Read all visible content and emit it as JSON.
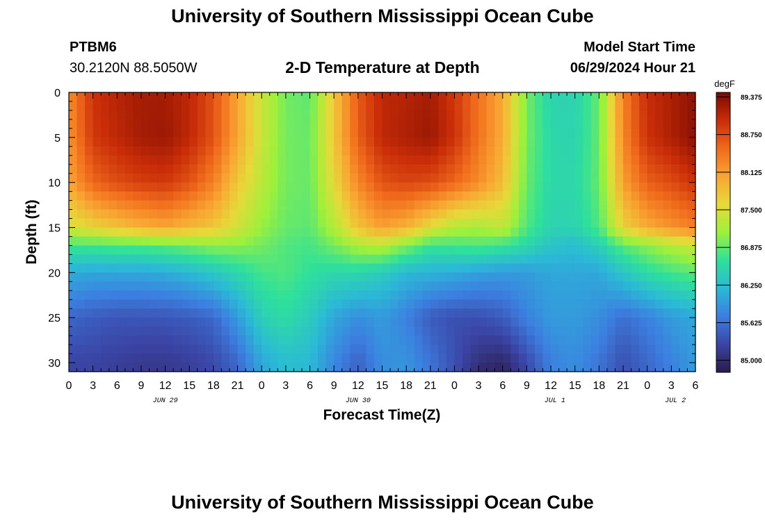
{
  "header": {
    "title_top": "University of Southern Mississippi Ocean Cube",
    "station": "PTBM6",
    "coords": "30.2120N  88.5050W",
    "plot_title": "2-D Temperature at Depth",
    "model_start_label": "Model Start Time",
    "model_start_value": "06/29/2024 Hour 21",
    "title_bottom": "University of Southern Mississippi Ocean Cube"
  },
  "colors": {
    "scale": [
      "#2b1a4a",
      "#3b45a6",
      "#3c7fe0",
      "#2bb9d6",
      "#2fe09b",
      "#9ef03b",
      "#e7d93a",
      "#f9a533",
      "#f06a1c",
      "#c92d08",
      "#7a0a02"
    ]
  },
  "chart_data": {
    "type": "heatmap",
    "title": "2-D Temperature at Depth",
    "xlabel": "Forecast Time(Z)",
    "ylabel": "Depth (ft)",
    "colorbar_unit": "degF",
    "xlim": [
      0,
      78
    ],
    "ylim": [
      0,
      31
    ],
    "x_ticks": [
      {
        "x": 0,
        "label": "0"
      },
      {
        "x": 3,
        "label": "3"
      },
      {
        "x": 6,
        "label": "6"
      },
      {
        "x": 9,
        "label": "9"
      },
      {
        "x": 12,
        "label": "12"
      },
      {
        "x": 15,
        "label": "15"
      },
      {
        "x": 18,
        "label": "18"
      },
      {
        "x": 21,
        "label": "21"
      },
      {
        "x": 24,
        "label": "0"
      },
      {
        "x": 27,
        "label": "3"
      },
      {
        "x": 30,
        "label": "6"
      },
      {
        "x": 33,
        "label": "9"
      },
      {
        "x": 36,
        "label": "12"
      },
      {
        "x": 39,
        "label": "15"
      },
      {
        "x": 42,
        "label": "18"
      },
      {
        "x": 45,
        "label": "21"
      },
      {
        "x": 48,
        "label": "0"
      },
      {
        "x": 51,
        "label": "3"
      },
      {
        "x": 54,
        "label": "6"
      },
      {
        "x": 57,
        "label": "9"
      },
      {
        "x": 60,
        "label": "12"
      },
      {
        "x": 63,
        "label": "15"
      },
      {
        "x": 66,
        "label": "18"
      },
      {
        "x": 69,
        "label": "21"
      },
      {
        "x": 72,
        "label": "0"
      },
      {
        "x": 75,
        "label": "3"
      },
      {
        "x": 78,
        "label": "6"
      }
    ],
    "date_labels": [
      {
        "x": 12,
        "label": "JUN 29"
      },
      {
        "x": 36,
        "label": "JUN 30"
      },
      {
        "x": 60.5,
        "label": "JUL 1"
      },
      {
        "x": 75.5,
        "label": "JUL 2"
      }
    ],
    "y_ticks": [
      0,
      5,
      10,
      15,
      20,
      25,
      30
    ],
    "colorbar": {
      "min": 84.8,
      "max": 89.45,
      "ticks": [
        "85.000",
        "85.625",
        "86.250",
        "86.875",
        "87.500",
        "88.125",
        "88.750",
        "89.375"
      ]
    },
    "depths": [
      0,
      5,
      10,
      15,
      17,
      20,
      25,
      30,
      31
    ],
    "times": [
      0,
      3,
      6,
      9,
      12,
      15,
      18,
      21,
      24,
      27,
      30,
      33,
      36,
      39,
      42,
      45,
      48,
      51,
      54,
      57,
      60,
      63,
      66,
      69,
      72,
      75,
      78
    ],
    "values": [
      [
        88.25,
        88.95,
        89.1,
        89.2,
        89.2,
        89.05,
        88.7,
        88.05,
        87.4,
        86.95,
        86.85,
        87.75,
        88.65,
        89.05,
        89.1,
        89.2,
        88.9,
        88.45,
        88.0,
        86.95,
        86.5,
        86.5,
        86.9,
        88.35,
        89.0,
        89.15,
        89.35
      ],
      [
        88.2,
        88.9,
        89.05,
        89.2,
        89.25,
        89.05,
        88.7,
        88.05,
        87.4,
        86.95,
        86.9,
        87.75,
        88.6,
        89.05,
        89.15,
        89.25,
        88.95,
        88.45,
        88.0,
        86.95,
        86.55,
        86.5,
        86.9,
        88.3,
        88.95,
        89.15,
        89.35
      ],
      [
        88.05,
        88.55,
        88.75,
        88.85,
        88.9,
        88.7,
        88.35,
        87.75,
        87.3,
        86.95,
        86.9,
        87.6,
        88.3,
        88.7,
        88.8,
        88.75,
        88.55,
        88.25,
        87.85,
        86.9,
        86.55,
        86.55,
        86.9,
        88.1,
        88.6,
        88.75,
        88.95
      ],
      [
        87.45,
        87.65,
        87.8,
        87.95,
        88.05,
        87.9,
        87.75,
        87.45,
        87.1,
        86.9,
        86.85,
        87.25,
        87.8,
        88.1,
        87.95,
        87.55,
        87.25,
        87.2,
        87.35,
        86.8,
        86.5,
        86.5,
        86.8,
        87.65,
        88.0,
        88.2,
        88.35
      ],
      [
        86.75,
        86.75,
        86.8,
        86.8,
        86.85,
        86.95,
        87.05,
        87.05,
        86.95,
        86.8,
        86.75,
        86.95,
        87.2,
        87.3,
        87.0,
        86.7,
        86.75,
        86.8,
        86.7,
        86.55,
        86.3,
        86.25,
        86.45,
        86.85,
        87.05,
        87.25,
        87.4
      ],
      [
        86.1,
        86.05,
        86.05,
        86.05,
        86.1,
        86.2,
        86.35,
        86.55,
        86.75,
        86.8,
        86.65,
        86.55,
        86.55,
        86.4,
        86.2,
        86.15,
        86.1,
        86.0,
        85.95,
        85.95,
        86.05,
        86.05,
        86.05,
        86.35,
        86.6,
        86.75,
        86.85
      ],
      [
        85.55,
        85.45,
        85.4,
        85.4,
        85.4,
        85.45,
        85.55,
        85.95,
        86.45,
        86.6,
        86.4,
        86.05,
        85.85,
        85.95,
        85.75,
        85.45,
        85.35,
        85.35,
        85.45,
        85.75,
        85.95,
        85.95,
        85.85,
        85.6,
        85.75,
        85.95,
        86.05
      ],
      [
        85.25,
        85.25,
        85.2,
        85.15,
        85.15,
        85.2,
        85.3,
        85.55,
        86.05,
        86.25,
        86.2,
        85.8,
        85.5,
        85.85,
        85.9,
        85.65,
        85.35,
        85.05,
        84.95,
        85.3,
        85.75,
        85.85,
        85.65,
        85.35,
        85.55,
        85.75,
        85.95
      ],
      [
        85.25,
        85.25,
        85.2,
        85.15,
        85.15,
        85.2,
        85.3,
        85.55,
        86.05,
        86.25,
        86.2,
        85.8,
        85.5,
        85.85,
        85.9,
        85.65,
        85.35,
        85.0,
        84.9,
        85.3,
        85.75,
        85.85,
        85.65,
        85.35,
        85.55,
        85.75,
        86.0
      ]
    ]
  }
}
